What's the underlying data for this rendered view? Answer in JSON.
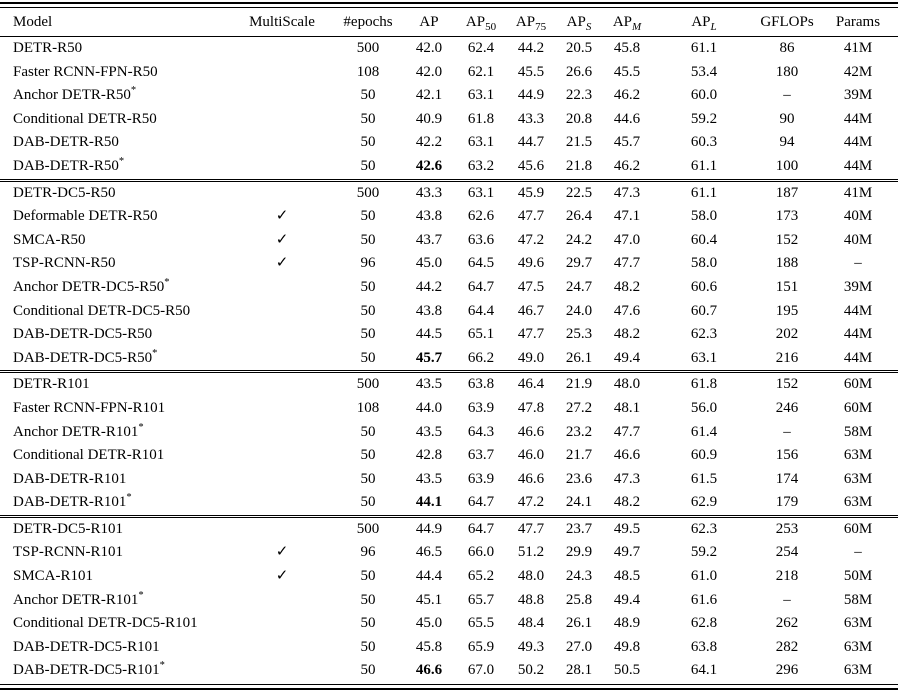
{
  "table": {
    "checkmark_glyph": "✓",
    "star_glyph": "*",
    "columns": [
      {
        "key": "model",
        "label": "Model",
        "align": "left"
      },
      {
        "key": "multiscale",
        "label": "MultiScale"
      },
      {
        "key": "epochs",
        "label": "#epochs"
      },
      {
        "key": "ap",
        "label": "AP"
      },
      {
        "key": "ap50",
        "label": "AP",
        "sub": "50",
        "sub_italic": false
      },
      {
        "key": "ap75",
        "label": "AP",
        "sub": "75",
        "sub_italic": false
      },
      {
        "key": "aps",
        "label": "AP",
        "sub": "S",
        "sub_italic": true
      },
      {
        "key": "apm",
        "label": "AP",
        "sub": "M",
        "sub_italic": true
      },
      {
        "key": "apl",
        "label": "AP",
        "sub": "L",
        "sub_italic": true
      },
      {
        "key": "gflops",
        "label": "GFLOPs"
      },
      {
        "key": "params",
        "label": "Params"
      }
    ],
    "sections": [
      {
        "rows": [
          {
            "model": "DETR-R50",
            "star": false,
            "multiscale": false,
            "epochs": "500",
            "ap": "42.0",
            "ap_bold": false,
            "ap50": "62.4",
            "ap75": "44.2",
            "aps": "20.5",
            "apm": "45.8",
            "apl": "61.1",
            "gflops": "86",
            "params": "41M"
          },
          {
            "model": "Faster RCNN-FPN-R50",
            "star": false,
            "multiscale": false,
            "epochs": "108",
            "ap": "42.0",
            "ap_bold": false,
            "ap50": "62.1",
            "ap75": "45.5",
            "aps": "26.6",
            "apm": "45.5",
            "apl": "53.4",
            "gflops": "180",
            "params": "42M"
          },
          {
            "model": "Anchor DETR-R50",
            "star": true,
            "multiscale": false,
            "epochs": "50",
            "ap": "42.1",
            "ap_bold": false,
            "ap50": "63.1",
            "ap75": "44.9",
            "aps": "22.3",
            "apm": "46.2",
            "apl": "60.0",
            "gflops": "–",
            "params": "39M"
          },
          {
            "model": "Conditional DETR-R50",
            "star": false,
            "multiscale": false,
            "epochs": "50",
            "ap": "40.9",
            "ap_bold": false,
            "ap50": "61.8",
            "ap75": "43.3",
            "aps": "20.8",
            "apm": "44.6",
            "apl": "59.2",
            "gflops": "90",
            "params": "44M"
          },
          {
            "model": "DAB-DETR-R50",
            "star": false,
            "multiscale": false,
            "epochs": "50",
            "ap": "42.2",
            "ap_bold": false,
            "ap50": "63.1",
            "ap75": "44.7",
            "aps": "21.5",
            "apm": "45.7",
            "apl": "60.3",
            "gflops": "94",
            "params": "44M"
          },
          {
            "model": "DAB-DETR-R50",
            "star": true,
            "multiscale": false,
            "epochs": "50",
            "ap": "42.6",
            "ap_bold": true,
            "ap50": "63.2",
            "ap75": "45.6",
            "aps": "21.8",
            "apm": "46.2",
            "apl": "61.1",
            "gflops": "100",
            "params": "44M"
          }
        ]
      },
      {
        "rows": [
          {
            "model": "DETR-DC5-R50",
            "star": false,
            "multiscale": false,
            "epochs": "500",
            "ap": "43.3",
            "ap_bold": false,
            "ap50": "63.1",
            "ap75": "45.9",
            "aps": "22.5",
            "apm": "47.3",
            "apl": "61.1",
            "gflops": "187",
            "params": "41M"
          },
          {
            "model": "Deformable DETR-R50",
            "star": false,
            "multiscale": true,
            "epochs": "50",
            "ap": "43.8",
            "ap_bold": false,
            "ap50": "62.6",
            "ap75": "47.7",
            "aps": "26.4",
            "apm": "47.1",
            "apl": "58.0",
            "gflops": "173",
            "params": "40M"
          },
          {
            "model": "SMCA-R50",
            "star": false,
            "multiscale": true,
            "epochs": "50",
            "ap": "43.7",
            "ap_bold": false,
            "ap50": "63.6",
            "ap75": "47.2",
            "aps": "24.2",
            "apm": "47.0",
            "apl": "60.4",
            "gflops": "152",
            "params": "40M"
          },
          {
            "model": "TSP-RCNN-R50",
            "star": false,
            "multiscale": true,
            "epochs": "96",
            "ap": "45.0",
            "ap_bold": false,
            "ap50": "64.5",
            "ap75": "49.6",
            "aps": "29.7",
            "apm": "47.7",
            "apl": "58.0",
            "gflops": "188",
            "params": "–"
          },
          {
            "model": "Anchor DETR-DC5-R50",
            "star": true,
            "multiscale": false,
            "epochs": "50",
            "ap": "44.2",
            "ap_bold": false,
            "ap50": "64.7",
            "ap75": "47.5",
            "aps": "24.7",
            "apm": "48.2",
            "apl": "60.6",
            "gflops": "151",
            "params": "39M"
          },
          {
            "model": "Conditional DETR-DC5-R50",
            "star": false,
            "multiscale": false,
            "epochs": "50",
            "ap": "43.8",
            "ap_bold": false,
            "ap50": "64.4",
            "ap75": "46.7",
            "aps": "24.0",
            "apm": "47.6",
            "apl": "60.7",
            "gflops": "195",
            "params": "44M"
          },
          {
            "model": "DAB-DETR-DC5-R50",
            "star": false,
            "multiscale": false,
            "epochs": "50",
            "ap": "44.5",
            "ap_bold": false,
            "ap50": "65.1",
            "ap75": "47.7",
            "aps": "25.3",
            "apm": "48.2",
            "apl": "62.3",
            "gflops": "202",
            "params": "44M"
          },
          {
            "model": "DAB-DETR-DC5-R50",
            "star": true,
            "multiscale": false,
            "epochs": "50",
            "ap": "45.7",
            "ap_bold": true,
            "ap50": "66.2",
            "ap75": "49.0",
            "aps": "26.1",
            "apm": "49.4",
            "apl": "63.1",
            "gflops": "216",
            "params": "44M"
          }
        ]
      },
      {
        "rows": [
          {
            "model": "DETR-R101",
            "star": false,
            "multiscale": false,
            "epochs": "500",
            "ap": "43.5",
            "ap_bold": false,
            "ap50": "63.8",
            "ap75": "46.4",
            "aps": "21.9",
            "apm": "48.0",
            "apl": "61.8",
            "gflops": "152",
            "params": "60M"
          },
          {
            "model": "Faster RCNN-FPN-R101",
            "star": false,
            "multiscale": false,
            "epochs": "108",
            "ap": "44.0",
            "ap_bold": false,
            "ap50": "63.9",
            "ap75": "47.8",
            "aps": "27.2",
            "apm": "48.1",
            "apl": "56.0",
            "gflops": "246",
            "params": "60M"
          },
          {
            "model": "Anchor DETR-R101",
            "star": true,
            "multiscale": false,
            "epochs": "50",
            "ap": "43.5",
            "ap_bold": false,
            "ap50": "64.3",
            "ap75": "46.6",
            "aps": "23.2",
            "apm": "47.7",
            "apl": "61.4",
            "gflops": "–",
            "params": "58M"
          },
          {
            "model": "Conditional DETR-R101",
            "star": false,
            "multiscale": false,
            "epochs": "50",
            "ap": "42.8",
            "ap_bold": false,
            "ap50": "63.7",
            "ap75": "46.0",
            "aps": "21.7",
            "apm": "46.6",
            "apl": "60.9",
            "gflops": "156",
            "params": "63M"
          },
          {
            "model": "DAB-DETR-R101",
            "star": false,
            "multiscale": false,
            "epochs": "50",
            "ap": "43.5",
            "ap_bold": false,
            "ap50": "63.9",
            "ap75": "46.6",
            "aps": "23.6",
            "apm": "47.3",
            "apl": "61.5",
            "gflops": "174",
            "params": "63M"
          },
          {
            "model": "DAB-DETR-R101",
            "star": true,
            "multiscale": false,
            "epochs": "50",
            "ap": "44.1",
            "ap_bold": true,
            "ap50": "64.7",
            "ap75": "47.2",
            "aps": "24.1",
            "apm": "48.2",
            "apl": "62.9",
            "gflops": "179",
            "params": "63M"
          }
        ]
      },
      {
        "rows": [
          {
            "model": "DETR-DC5-R101",
            "star": false,
            "multiscale": false,
            "epochs": "500",
            "ap": "44.9",
            "ap_bold": false,
            "ap50": "64.7",
            "ap75": "47.7",
            "aps": "23.7",
            "apm": "49.5",
            "apl": "62.3",
            "gflops": "253",
            "params": "60M"
          },
          {
            "model": "TSP-RCNN-R101",
            "star": false,
            "multiscale": true,
            "epochs": "96",
            "ap": "46.5",
            "ap_bold": false,
            "ap50": "66.0",
            "ap75": "51.2",
            "aps": "29.9",
            "apm": "49.7",
            "apl": "59.2",
            "gflops": "254",
            "params": "–"
          },
          {
            "model": "SMCA-R101",
            "star": false,
            "multiscale": true,
            "epochs": "50",
            "ap": "44.4",
            "ap_bold": false,
            "ap50": "65.2",
            "ap75": "48.0",
            "aps": "24.3",
            "apm": "48.5",
            "apl": "61.0",
            "gflops": "218",
            "params": "50M"
          },
          {
            "model": "Anchor DETR-R101",
            "star": true,
            "multiscale": false,
            "epochs": "50",
            "ap": "45.1",
            "ap_bold": false,
            "ap50": "65.7",
            "ap75": "48.8",
            "aps": "25.8",
            "apm": "49.4",
            "apl": "61.6",
            "gflops": "–",
            "params": "58M"
          },
          {
            "model": "Conditional DETR-DC5-R101",
            "star": false,
            "multiscale": false,
            "epochs": "50",
            "ap": "45.0",
            "ap_bold": false,
            "ap50": "65.5",
            "ap75": "48.4",
            "aps": "26.1",
            "apm": "48.9",
            "apl": "62.8",
            "gflops": "262",
            "params": "63M"
          },
          {
            "model": "DAB-DETR-DC5-R101",
            "star": false,
            "multiscale": false,
            "epochs": "50",
            "ap": "45.8",
            "ap_bold": false,
            "ap50": "65.9",
            "ap75": "49.3",
            "aps": "27.0",
            "apm": "49.8",
            "apl": "63.8",
            "gflops": "282",
            "params": "63M"
          },
          {
            "model": "DAB-DETR-DC5-R101",
            "star": true,
            "multiscale": false,
            "epochs": "50",
            "ap": "46.6",
            "ap_bold": true,
            "ap50": "67.0",
            "ap75": "50.2",
            "aps": "28.1",
            "apm": "50.5",
            "apl": "64.1",
            "gflops": "296",
            "params": "63M"
          }
        ]
      }
    ]
  }
}
